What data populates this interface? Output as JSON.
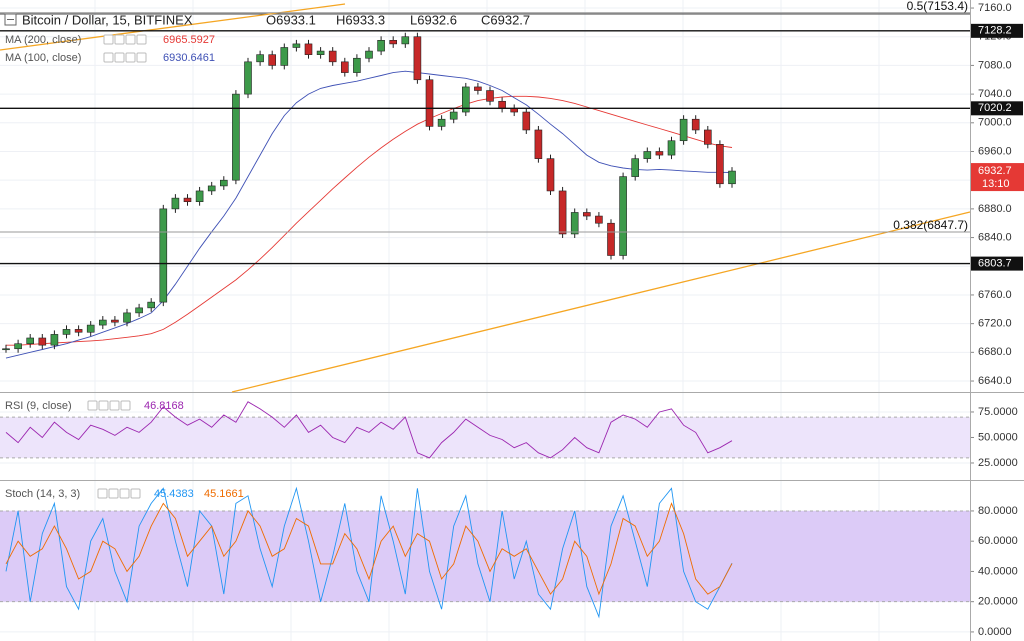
{
  "chart_data": [
    {
      "type": "candlestick",
      "title": "Bitcoin / Dollar, 15, BITFINEX",
      "ohlc": [
        {
          "value": 6933.1,
          "label": "O6933.1"
        },
        {
          "value": 6933.3,
          "label": "H6933.3"
        },
        {
          "value": 6932.6,
          "label": "L6932.6"
        },
        {
          "value": 6932.7,
          "label": "C6932.7"
        }
      ],
      "values": [
        6685,
        6692,
        6700,
        6690,
        6705,
        6712,
        6708,
        6718,
        6725,
        6722,
        6735,
        6742,
        6750,
        6880,
        6895,
        6890,
        6905,
        6912,
        6920,
        7040,
        7085,
        7095,
        7080,
        7105,
        7110,
        7095,
        7100,
        7085,
        7070,
        7090,
        7100,
        7115,
        7110,
        7120,
        7060,
        6995,
        7005,
        7015,
        7050,
        7045,
        7030,
        7020,
        7015,
        6990,
        6950,
        6905,
        6845,
        6875,
        6870,
        6860,
        6815,
        6925,
        6950,
        6960,
        6955,
        6975,
        7005,
        6990,
        6970,
        6915,
        6932.7
      ],
      "series": [
        {
          "name": "MA (200, close)",
          "label_value": 6965.5927,
          "color": "#e53935",
          "values": [
            6690,
            6690,
            6691,
            6692,
            6693,
            6694,
            6695,
            6696,
            6697,
            6699,
            6701,
            6703,
            6706,
            6712,
            6722,
            6733,
            6745,
            6757,
            6769,
            6781,
            6795,
            6810,
            6826,
            6843,
            6860,
            6876,
            6892,
            6908,
            6923,
            6938,
            6952,
            6965,
            6977,
            6988,
            6998,
            7006,
            7013,
            7020,
            7026,
            7031,
            7034,
            7036,
            7037,
            7037,
            7036,
            7034,
            7031,
            7027,
            7022,
            7017,
            7012,
            7007,
            7002,
            6997,
            6992,
            6987,
            6982,
            6977,
            6972,
            6968,
            6965.5927
          ]
        },
        {
          "name": "MA (100, close)",
          "label_value": 6930.6461,
          "color": "#3f51b5",
          "values": [
            6672,
            6676,
            6680,
            6684,
            6688,
            6692,
            6697,
            6702,
            6708,
            6714,
            6720,
            6727,
            6735,
            6752,
            6775,
            6800,
            6825,
            6848,
            6870,
            6895,
            6925,
            6955,
            6985,
            7010,
            7028,
            7040,
            7048,
            7052,
            7055,
            7058,
            7062,
            7066,
            7070,
            7072,
            7070,
            7068,
            7066,
            7064,
            7062,
            7058,
            7052,
            7045,
            7035,
            7025,
            7012,
            6998,
            6985,
            6970,
            6955,
            6945,
            6940,
            6937,
            6935,
            6934,
            6935,
            6934,
            6933,
            6932,
            6931,
            6931,
            6930.6461
          ]
        }
      ],
      "levels": [
        7128.2,
        7020.2,
        6803.7
      ],
      "fib": [
        {
          "value": 7153.4,
          "label": "0.5(7153.4)"
        },
        {
          "value": 6847.7,
          "label": "0.382(6847.7)"
        }
      ],
      "last_price": 6932.7,
      "countdown": "13:10",
      "ylim": [
        6624.7,
        7171.2
      ],
      "yticks": [
        {
          "value": 6640,
          "label": "6640.0"
        },
        {
          "value": 6680,
          "label": "6680.0"
        },
        {
          "value": 6720,
          "label": "6720.0"
        },
        {
          "value": 6760,
          "label": "6760.0"
        },
        {
          "value": 6800,
          "label": "6800.0"
        },
        {
          "value": 6840,
          "label": "6840.0"
        },
        {
          "value": 6880,
          "label": "6880.0"
        },
        {
          "value": 6920,
          "label": "6920.0"
        },
        {
          "value": 6960,
          "label": "6960.0"
        },
        {
          "value": 7000,
          "label": "7000.0"
        },
        {
          "value": 7040,
          "label": "7040.0"
        },
        {
          "value": 7080,
          "label": "7080.0"
        },
        {
          "value": 7120,
          "label": "7120.0"
        },
        {
          "value": 7160,
          "label": "7160.0"
        }
      ],
      "up_color": "#3d9a4a",
      "down_color": "#c62828"
    },
    {
      "type": "line",
      "title": "RSI (9, close)",
      "series": [
        {
          "name": "RSI",
          "label_value": 46.8168,
          "color": "#9c27b0",
          "values": [
            55,
            45,
            60,
            50,
            65,
            55,
            48,
            62,
            58,
            52,
            60,
            55,
            65,
            80,
            70,
            62,
            68,
            60,
            72,
            65,
            85,
            78,
            70,
            60,
            72,
            55,
            62,
            50,
            45,
            60,
            55,
            65,
            58,
            70,
            35,
            30,
            45,
            55,
            68,
            60,
            52,
            48,
            40,
            45,
            35,
            30,
            38,
            50,
            40,
            35,
            65,
            72,
            68,
            60,
            75,
            78,
            62,
            55,
            35,
            40,
            46.8168
          ]
        }
      ],
      "band": [
        30,
        70
      ],
      "band_color": "#ede4fb",
      "ylim": [
        9.3,
        93.6
      ],
      "yticks": [
        {
          "value": 25,
          "label": "25.0000"
        },
        {
          "value": 50,
          "label": "50.0000"
        },
        {
          "value": 75,
          "label": "75.0000"
        }
      ]
    },
    {
      "type": "line",
      "title": "Stoch (14, 3, 3)",
      "series": [
        {
          "name": "%K",
          "label_value": 45.4383,
          "color": "#2196f3",
          "values": [
            40,
            80,
            20,
            65,
            85,
            30,
            15,
            60,
            75,
            40,
            20,
            70,
            85,
            95,
            60,
            30,
            80,
            70,
            25,
            85,
            90,
            55,
            30,
            70,
            95,
            60,
            20,
            50,
            85,
            40,
            20,
            90,
            60,
            25,
            95,
            40,
            15,
            70,
            90,
            45,
            20,
            80,
            35,
            60,
            25,
            15,
            55,
            80,
            30,
            10,
            70,
            90,
            60,
            30,
            85,
            95,
            40,
            20,
            15,
            30,
            45.4383
          ]
        },
        {
          "name": "%D",
          "label_value": 45.1661,
          "color": "#ef6c00",
          "values": [
            45,
            60,
            50,
            55,
            70,
            55,
            35,
            40,
            60,
            55,
            40,
            50,
            70,
            85,
            75,
            50,
            60,
            70,
            50,
            60,
            80,
            70,
            50,
            55,
            75,
            70,
            45,
            45,
            65,
            55,
            35,
            60,
            70,
            50,
            65,
            60,
            35,
            45,
            70,
            60,
            40,
            55,
            50,
            55,
            40,
            25,
            35,
            60,
            50,
            25,
            45,
            75,
            70,
            50,
            60,
            85,
            65,
            35,
            25,
            30,
            45.1661
          ]
        }
      ],
      "band": [
        20,
        80
      ],
      "band_color": "#dccbf7",
      "ylim": [
        -6,
        99.8
      ],
      "yticks": [
        {
          "value": 0,
          "label": "0.0000"
        },
        {
          "value": 20,
          "label": "20.0000"
        },
        {
          "value": 40,
          "label": "40.0000"
        },
        {
          "value": 60,
          "label": "60.0000"
        },
        {
          "value": 80,
          "label": "80.0000"
        }
      ]
    }
  ]
}
